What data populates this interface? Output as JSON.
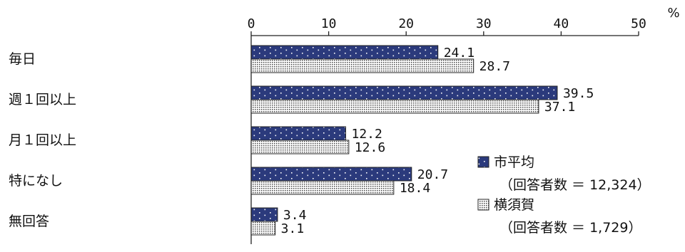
{
  "chart_data": {
    "type": "bar",
    "orientation": "horizontal",
    "unit": "%",
    "xlim": [
      0,
      50
    ],
    "ticks": [
      "0",
      "10",
      "20",
      "30",
      "40",
      "50"
    ],
    "categories": [
      "毎日",
      "週１回以上",
      "月１回以上",
      "特になし",
      "無回答"
    ],
    "series": [
      {
        "name": "市平均",
        "note": "（回答者数 ＝ 12,324）",
        "color": "#2b3a7c",
        "values": [
          24.1,
          39.5,
          12.2,
          20.7,
          3.4
        ],
        "labels": [
          "24.1",
          "39.5",
          "12.2",
          "20.7",
          "3.4"
        ]
      },
      {
        "name": "横須賀",
        "note": "（回答者数 ＝ 1,729）",
        "color": "#b8b8b8",
        "values": [
          28.7,
          37.1,
          12.6,
          18.4,
          3.1
        ],
        "labels": [
          "28.7",
          "37.1",
          "12.6",
          "18.4",
          "3.1"
        ]
      }
    ],
    "legend_position": "bottom-right",
    "grid": false
  }
}
